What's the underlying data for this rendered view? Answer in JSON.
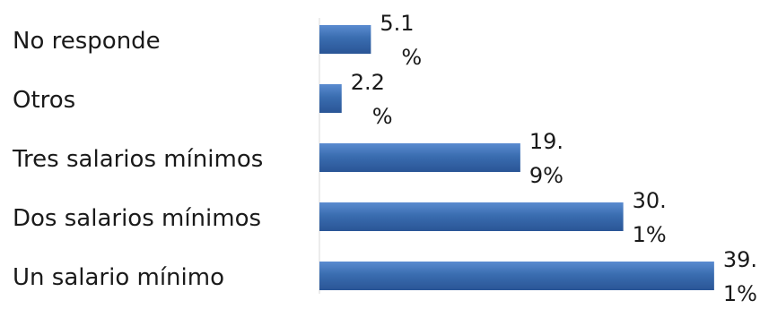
{
  "chart_data": {
    "type": "bar",
    "orientation": "horizontal",
    "categories": [
      "No responde",
      "Otros",
      "Tres salarios mínimos",
      "Dos salarios mínimos",
      "Un salario mínimo"
    ],
    "values": [
      5.1,
      2.2,
      19.9,
      30.1,
      39.1
    ],
    "unit": "%",
    "data_labels": [
      [
        "5.1",
        "%"
      ],
      [
        "2.2",
        "%"
      ],
      [
        "19.",
        "9%"
      ],
      [
        "30.",
        "1%"
      ],
      [
        "39.",
        "1%"
      ]
    ],
    "xlim": [
      0,
      39.1
    ],
    "grid": false,
    "legend": "none",
    "bar_color": "#3a6db0",
    "bar_color_dark": "#2a5596"
  }
}
